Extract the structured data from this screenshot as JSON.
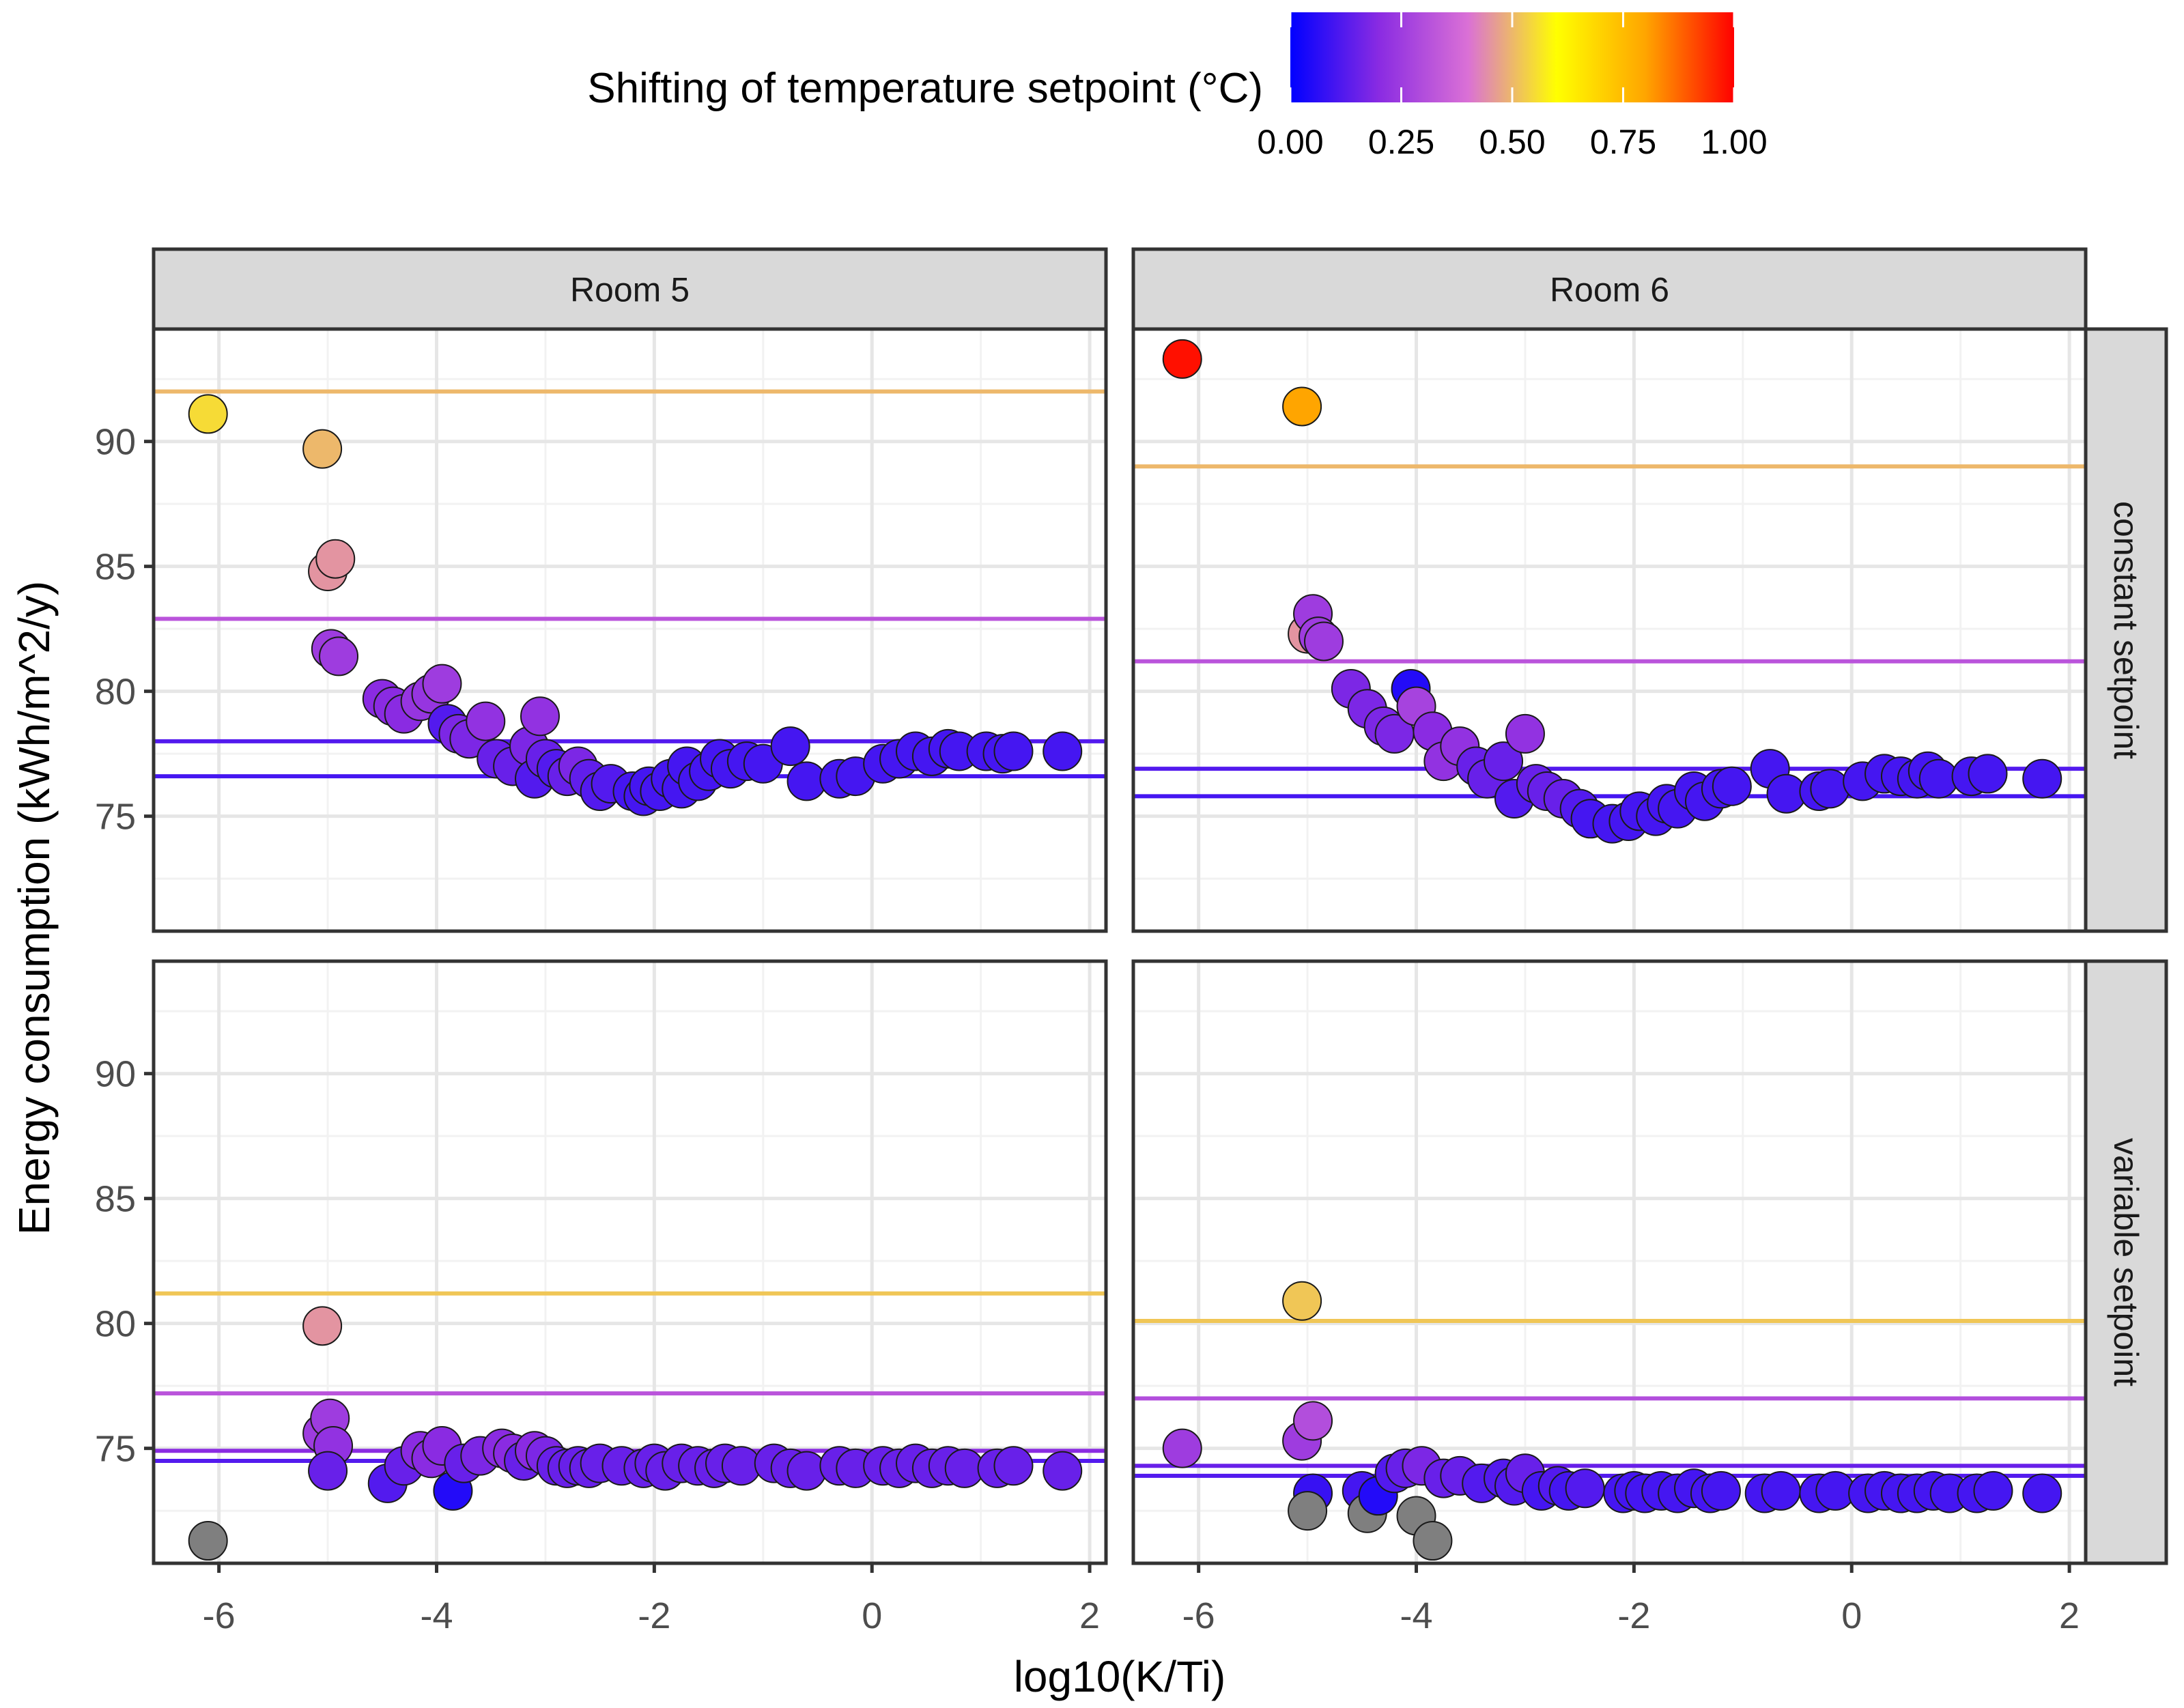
{
  "chart_data": {
    "type": "scatter",
    "title": "",
    "xlabel": "log10(K/Ti)",
    "ylabel": "Energy consumption (kWh/m^2/y)",
    "xlim": [
      -6.6,
      2.15
    ],
    "ylim": [
      70.4,
      94.5
    ],
    "x_ticks": [
      -6,
      -4,
      -2,
      0,
      2
    ],
    "x_tick_labels": [
      "-6",
      "-4",
      "-2",
      "0",
      "2"
    ],
    "y_ticks": [
      75,
      80,
      85,
      90
    ],
    "y_tick_labels": [
      "75",
      "80",
      "85",
      "90"
    ],
    "grid": true,
    "legend": {
      "title": "Shifting of temperature setpoint (°C)",
      "placement": "top",
      "type": "colorbar",
      "range": [
        0,
        1
      ],
      "ticks": [
        0,
        0.25,
        0.5,
        0.75,
        1
      ],
      "tick_labels": [
        "0.00",
        "0.25",
        "0.50",
        "0.75",
        "1.00"
      ],
      "colors": [
        "#0000ff",
        "#8a2be2",
        "#da70d6",
        "#ffff00",
        "#ffa500",
        "#ff0000"
      ],
      "na_color": "#7f7f7f"
    },
    "col_facets": [
      "Room 5",
      "Room 6"
    ],
    "row_facets": [
      "constant setpoint",
      "variable setpoint"
    ],
    "panels": [
      {
        "col": "Room 5",
        "row": "constant setpoint",
        "hlines": [
          {
            "y": 92.0,
            "shift": 0.5
          },
          {
            "y": 82.9,
            "shift": 0.32
          },
          {
            "y": 78.0,
            "shift": 0.12
          },
          {
            "y": 76.6,
            "shift": 0.1
          }
        ],
        "points": [
          [
            -6.1,
            91.1,
            0.55
          ],
          [
            -5.05,
            89.7,
            0.5
          ],
          [
            -5.0,
            84.8,
            0.45
          ],
          [
            -4.93,
            85.3,
            0.45
          ],
          [
            -4.97,
            81.7,
            0.25
          ],
          [
            -4.9,
            81.4,
            0.25
          ],
          [
            -4.5,
            79.7,
            0.2
          ],
          [
            -4.4,
            79.4,
            0.2
          ],
          [
            -4.3,
            79.1,
            0.2
          ],
          [
            -4.15,
            79.6,
            0.23
          ],
          [
            -4.05,
            79.9,
            0.23
          ],
          [
            -3.95,
            80.3,
            0.25
          ],
          [
            -3.9,
            78.7,
            0.12
          ],
          [
            -3.8,
            78.3,
            0.18
          ],
          [
            -3.7,
            78.1,
            0.18
          ],
          [
            -3.55,
            78.8,
            0.22
          ],
          [
            -3.45,
            77.3,
            0.15
          ],
          [
            -3.3,
            77.0,
            0.15
          ],
          [
            -3.15,
            77.8,
            0.18
          ],
          [
            -3.1,
            76.5,
            0.12
          ],
          [
            -3.05,
            79.0,
            0.22
          ],
          [
            -3.0,
            77.3,
            0.15
          ],
          [
            -2.9,
            76.9,
            0.12
          ],
          [
            -2.8,
            76.6,
            0.15
          ],
          [
            -2.7,
            77.0,
            0.18
          ],
          [
            -2.6,
            76.5,
            0.14
          ],
          [
            -2.5,
            76.0,
            0.12
          ],
          [
            -2.4,
            76.3,
            0.12
          ],
          [
            -2.2,
            76.0,
            0.1
          ],
          [
            -2.1,
            75.8,
            0.1
          ],
          [
            -2.05,
            76.2,
            0.1
          ],
          [
            -1.95,
            76.0,
            0.1
          ],
          [
            -1.85,
            76.5,
            0.1
          ],
          [
            -1.75,
            76.1,
            0.1
          ],
          [
            -1.7,
            77.0,
            0.1
          ],
          [
            -1.6,
            76.4,
            0.1
          ],
          [
            -1.5,
            76.8,
            0.1
          ],
          [
            -1.4,
            77.3,
            0.1
          ],
          [
            -1.3,
            76.9,
            0.1
          ],
          [
            -1.15,
            77.2,
            0.1
          ],
          [
            -1.0,
            77.1,
            0.1
          ],
          [
            -0.75,
            77.8,
            0.1
          ],
          [
            -0.6,
            76.4,
            0.1
          ],
          [
            -0.3,
            76.5,
            0.1
          ],
          [
            -0.15,
            76.6,
            0.1
          ],
          [
            0.1,
            77.1,
            0.1
          ],
          [
            0.25,
            77.3,
            0.1
          ],
          [
            0.4,
            77.6,
            0.1
          ],
          [
            0.55,
            77.4,
            0.1
          ],
          [
            0.7,
            77.7,
            0.1
          ],
          [
            0.8,
            77.6,
            0.1
          ],
          [
            1.05,
            77.6,
            0.1
          ],
          [
            1.2,
            77.5,
            0.1
          ],
          [
            1.3,
            77.6,
            0.1
          ],
          [
            1.75,
            77.6,
            0.1
          ]
        ]
      },
      {
        "col": "Room 6",
        "row": "constant setpoint",
        "hlines": [
          {
            "y": 89.0,
            "shift": 0.5
          },
          {
            "y": 81.2,
            "shift": 0.32
          },
          {
            "y": 76.9,
            "shift": 0.12
          },
          {
            "y": 75.8,
            "shift": 0.1
          }
        ],
        "points": [
          [
            -6.15,
            93.3,
            0.98
          ],
          [
            -5.05,
            91.4,
            0.8
          ],
          [
            -5.0,
            82.3,
            0.45
          ],
          [
            -4.95,
            83.1,
            0.25
          ],
          [
            -4.9,
            82.2,
            0.25
          ],
          [
            -4.85,
            82.0,
            0.25
          ],
          [
            -4.6,
            80.1,
            0.18
          ],
          [
            -4.45,
            79.3,
            0.18
          ],
          [
            -4.3,
            78.6,
            0.18
          ],
          [
            -4.2,
            78.3,
            0.18
          ],
          [
            -4.05,
            80.1,
            0.05
          ],
          [
            -4.0,
            79.4,
            0.27
          ],
          [
            -3.85,
            78.4,
            0.2
          ],
          [
            -3.75,
            77.2,
            0.22
          ],
          [
            -3.6,
            77.8,
            0.22
          ],
          [
            -3.45,
            77.0,
            0.15
          ],
          [
            -3.35,
            76.5,
            0.15
          ],
          [
            -3.2,
            77.2,
            0.15
          ],
          [
            -3.1,
            75.7,
            0.12
          ],
          [
            -3.0,
            78.3,
            0.22
          ],
          [
            -2.9,
            76.3,
            0.15
          ],
          [
            -2.8,
            76.0,
            0.15
          ],
          [
            -2.65,
            75.7,
            0.15
          ],
          [
            -2.5,
            75.3,
            0.12
          ],
          [
            -2.4,
            74.9,
            0.1
          ],
          [
            -2.2,
            74.7,
            0.1
          ],
          [
            -2.05,
            74.8,
            0.1
          ],
          [
            -1.95,
            75.2,
            0.1
          ],
          [
            -1.8,
            75.0,
            0.1
          ],
          [
            -1.7,
            75.5,
            0.1
          ],
          [
            -1.6,
            75.3,
            0.1
          ],
          [
            -1.45,
            76.0,
            0.1
          ],
          [
            -1.35,
            75.6,
            0.1
          ],
          [
            -1.2,
            76.1,
            0.1
          ],
          [
            -1.1,
            76.2,
            0.1
          ],
          [
            -0.75,
            76.9,
            0.1
          ],
          [
            -0.6,
            75.9,
            0.1
          ],
          [
            -0.3,
            76.0,
            0.1
          ],
          [
            -0.2,
            76.1,
            0.1
          ],
          [
            0.1,
            76.4,
            0.1
          ],
          [
            0.3,
            76.7,
            0.1
          ],
          [
            0.45,
            76.6,
            0.1
          ],
          [
            0.6,
            76.5,
            0.1
          ],
          [
            0.7,
            76.8,
            0.1
          ],
          [
            0.8,
            76.5,
            0.1
          ],
          [
            1.1,
            76.6,
            0.1
          ],
          [
            1.25,
            76.7,
            0.1
          ],
          [
            1.75,
            76.5,
            0.1
          ]
        ]
      },
      {
        "col": "Room 5",
        "row": "variable setpoint",
        "hlines": [
          {
            "y": 81.2,
            "shift": 0.52
          },
          {
            "y": 77.2,
            "shift": 0.32
          },
          {
            "y": 74.9,
            "shift": 0.2
          },
          {
            "y": 74.5,
            "shift": 0.12
          }
        ],
        "points": [
          [
            -6.1,
            71.3,
            null
          ],
          [
            -5.05,
            79.9,
            0.45
          ],
          [
            -5.05,
            75.6,
            0.25
          ],
          [
            -4.98,
            76.2,
            0.25
          ],
          [
            -4.95,
            75.1,
            0.22
          ],
          [
            -5.0,
            74.1,
            0.15
          ],
          [
            -4.45,
            73.6,
            0.12
          ],
          [
            -4.3,
            74.3,
            0.15
          ],
          [
            -4.15,
            74.9,
            0.2
          ],
          [
            -4.05,
            74.6,
            0.2
          ],
          [
            -3.95,
            75.1,
            0.2
          ],
          [
            -3.85,
            73.3,
            0.05
          ],
          [
            -3.75,
            74.4,
            0.15
          ],
          [
            -3.6,
            74.7,
            0.18
          ],
          [
            -3.4,
            75.0,
            0.2
          ],
          [
            -3.3,
            74.8,
            0.2
          ],
          [
            -3.2,
            74.5,
            0.15
          ],
          [
            -3.1,
            74.9,
            0.2
          ],
          [
            -3.0,
            74.7,
            0.18
          ],
          [
            -2.9,
            74.3,
            0.15
          ],
          [
            -2.8,
            74.2,
            0.15
          ],
          [
            -2.7,
            74.3,
            0.15
          ],
          [
            -2.6,
            74.2,
            0.15
          ],
          [
            -2.5,
            74.4,
            0.15
          ],
          [
            -2.3,
            74.3,
            0.15
          ],
          [
            -2.1,
            74.2,
            0.15
          ],
          [
            -2.0,
            74.4,
            0.15
          ],
          [
            -1.9,
            74.1,
            0.15
          ],
          [
            -1.75,
            74.4,
            0.15
          ],
          [
            -1.6,
            74.3,
            0.15
          ],
          [
            -1.45,
            74.2,
            0.15
          ],
          [
            -1.35,
            74.4,
            0.15
          ],
          [
            -1.2,
            74.3,
            0.15
          ],
          [
            -0.9,
            74.4,
            0.15
          ],
          [
            -0.75,
            74.2,
            0.15
          ],
          [
            -0.6,
            74.1,
            0.15
          ],
          [
            -0.3,
            74.3,
            0.15
          ],
          [
            -0.15,
            74.2,
            0.15
          ],
          [
            0.1,
            74.3,
            0.15
          ],
          [
            0.25,
            74.2,
            0.15
          ],
          [
            0.4,
            74.4,
            0.15
          ],
          [
            0.55,
            74.2,
            0.15
          ],
          [
            0.7,
            74.3,
            0.15
          ],
          [
            0.85,
            74.2,
            0.15
          ],
          [
            1.15,
            74.2,
            0.15
          ],
          [
            1.3,
            74.3,
            0.15
          ],
          [
            1.75,
            74.1,
            0.15
          ]
        ]
      },
      {
        "col": "Room 6",
        "row": "variable setpoint",
        "hlines": [
          {
            "y": 80.1,
            "shift": 0.52
          },
          {
            "y": 77.0,
            "shift": 0.3
          },
          {
            "y": 74.3,
            "shift": 0.15
          },
          {
            "y": 73.9,
            "shift": 0.12
          }
        ],
        "points": [
          [
            -6.15,
            75.0,
            0.25
          ],
          [
            -5.05,
            80.9,
            0.52
          ],
          [
            -5.05,
            75.3,
            0.25
          ],
          [
            -4.95,
            76.1,
            0.3
          ],
          [
            -4.95,
            73.2,
            0.08
          ],
          [
            -5.0,
            72.5,
            null
          ],
          [
            -4.5,
            73.3,
            0.1
          ],
          [
            -4.45,
            72.4,
            null
          ],
          [
            -4.35,
            73.1,
            0.05
          ],
          [
            -4.2,
            74.0,
            0.12
          ],
          [
            -4.1,
            74.2,
            0.15
          ],
          [
            -4.0,
            72.3,
            null
          ],
          [
            -3.95,
            74.3,
            0.18
          ],
          [
            -3.85,
            71.3,
            null
          ],
          [
            -3.75,
            73.8,
            0.15
          ],
          [
            -3.6,
            73.9,
            0.15
          ],
          [
            -3.4,
            73.6,
            0.12
          ],
          [
            -3.2,
            73.8,
            0.12
          ],
          [
            -3.1,
            73.5,
            0.12
          ],
          [
            -3.0,
            74.0,
            0.15
          ],
          [
            -2.85,
            73.3,
            0.1
          ],
          [
            -2.7,
            73.5,
            0.12
          ],
          [
            -2.6,
            73.3,
            0.1
          ],
          [
            -2.45,
            73.4,
            0.12
          ],
          [
            -2.1,
            73.2,
            0.1
          ],
          [
            -2.0,
            73.3,
            0.1
          ],
          [
            -1.9,
            73.2,
            0.1
          ],
          [
            -1.75,
            73.3,
            0.1
          ],
          [
            -1.6,
            73.2,
            0.1
          ],
          [
            -1.45,
            73.4,
            0.1
          ],
          [
            -1.3,
            73.2,
            0.1
          ],
          [
            -1.2,
            73.3,
            0.1
          ],
          [
            -0.8,
            73.2,
            0.1
          ],
          [
            -0.65,
            73.3,
            0.1
          ],
          [
            -0.3,
            73.2,
            0.1
          ],
          [
            -0.15,
            73.3,
            0.1
          ],
          [
            0.15,
            73.2,
            0.1
          ],
          [
            0.3,
            73.3,
            0.1
          ],
          [
            0.45,
            73.2,
            0.1
          ],
          [
            0.6,
            73.2,
            0.1
          ],
          [
            0.75,
            73.3,
            0.1
          ],
          [
            0.9,
            73.2,
            0.1
          ],
          [
            1.15,
            73.2,
            0.1
          ],
          [
            1.3,
            73.3,
            0.1
          ],
          [
            1.75,
            73.2,
            0.1
          ]
        ]
      }
    ]
  }
}
